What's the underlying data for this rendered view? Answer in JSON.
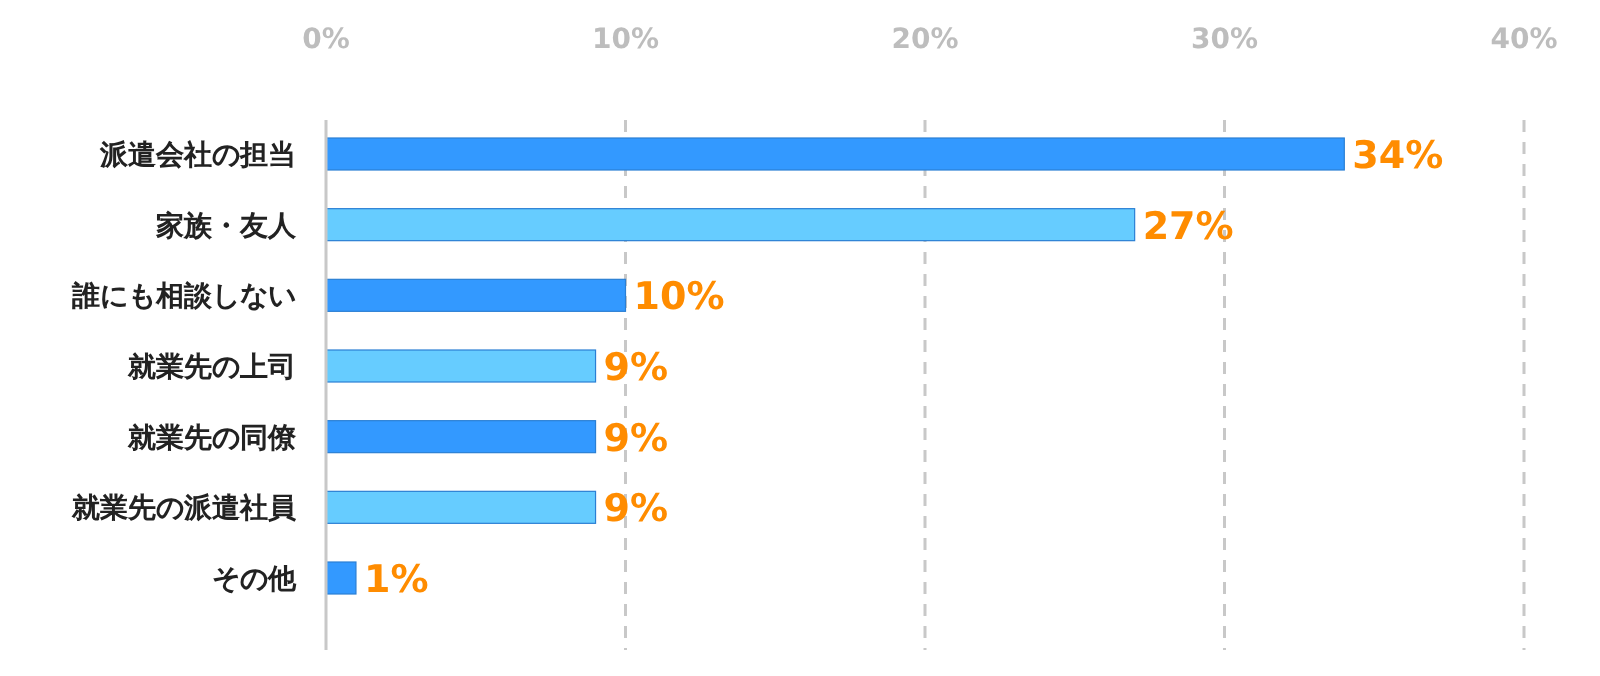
{
  "chart_data": {
    "type": "bar",
    "orientation": "horizontal",
    "categories": [
      "派遣会社の担当",
      "家族・友人",
      "誰にも相談しない",
      "就業先の上司",
      "就業先の同僚",
      "就業先の派遣社員",
      "その他"
    ],
    "values": [
      34,
      27,
      10,
      9,
      9,
      9,
      1
    ],
    "colors": [
      "#3399ff",
      "#66ccff",
      "#3399ff",
      "#66ccff",
      "#3399ff",
      "#66ccff",
      "#3399ff"
    ],
    "value_labels": [
      "34%",
      "27%",
      "10%",
      "9%",
      "9%",
      "9%",
      "1%"
    ],
    "xlim": [
      0,
      40
    ],
    "xticks": [
      {
        "value": 0,
        "label": "0%"
      },
      {
        "value": 10,
        "label": "10%"
      },
      {
        "value": 20,
        "label": "20%"
      },
      {
        "value": 30,
        "label": "30%"
      },
      {
        "value": 40,
        "label": "40%"
      }
    ],
    "grid": "x"
  }
}
